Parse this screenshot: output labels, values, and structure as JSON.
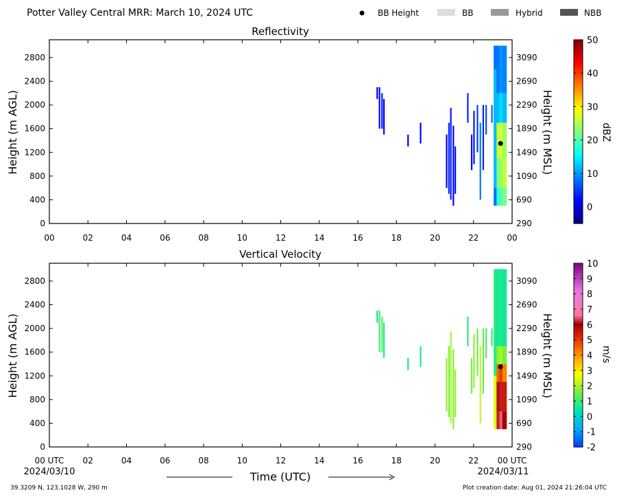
{
  "figure": {
    "title": "Potter Valley Central MRR:  March 10, 2024 UTC",
    "legend": [
      {
        "label": "BB Height",
        "marker": "dot",
        "color": "#000000"
      },
      {
        "label": "BB",
        "marker": "swatch",
        "color": "#dcdcdc"
      },
      {
        "label": "Hybrid",
        "marker": "swatch",
        "color": "#9a9a9a"
      },
      {
        "label": "NBB",
        "marker": "swatch",
        "color": "#555555"
      }
    ],
    "xlabel": "Time (UTC)",
    "x_start_label": "00 UTC",
    "x_start_date": "2024/03/10",
    "x_end_label": "00 UTC",
    "x_end_date": "2024/03/11",
    "location": "39.3209 N, 123.1028 W, 290 m",
    "creation": "Plot creation date: Aug 01, 2024 21:26:04 UTC"
  },
  "chart_data": [
    {
      "type": "heatmap",
      "title": "Reflectivity",
      "ylabel": "Height (m AGL)",
      "y2label": "Height (m MSL)",
      "colorbar_label": "dBZ",
      "xlim": [
        0,
        24
      ],
      "x_ticks": [
        "00",
        "02",
        "04",
        "06",
        "08",
        "10",
        "12",
        "14",
        "16",
        "18",
        "20",
        "22",
        "00"
      ],
      "ylim": [
        0,
        3100
      ],
      "y_ticks": [
        0,
        400,
        800,
        1200,
        1600,
        2000,
        2400,
        2800
      ],
      "y2_ticks": [
        290,
        690,
        1090,
        1490,
        1890,
        2290,
        2690,
        3090
      ],
      "colorbar_range": [
        -5,
        50
      ],
      "colorbar_ticks": [
        0,
        10,
        20,
        30,
        40,
        50
      ],
      "colormap": "jet",
      "bb_height": {
        "time": 23.4,
        "height": 1350
      },
      "echoes": [
        {
          "time": 17.0,
          "bottom": 2100,
          "top": 2300,
          "value": 1
        },
        {
          "time": 17.12,
          "bottom": 1600,
          "top": 2300,
          "value": 2
        },
        {
          "time": 17.25,
          "bottom": 1600,
          "top": 2200,
          "value": 3
        },
        {
          "time": 17.35,
          "bottom": 1500,
          "top": 2100,
          "value": 1
        },
        {
          "time": 18.6,
          "bottom": 1300,
          "top": 1500,
          "value": 1
        },
        {
          "time": 19.25,
          "bottom": 1350,
          "top": 1700,
          "value": 1
        },
        {
          "time": 20.6,
          "bottom": 600,
          "top": 1500,
          "value": 2
        },
        {
          "time": 20.72,
          "bottom": 500,
          "top": 1700,
          "value": 4
        },
        {
          "time": 20.82,
          "bottom": 400,
          "top": 1950,
          "value": 3
        },
        {
          "time": 20.95,
          "bottom": 300,
          "top": 1650,
          "value": 2
        },
        {
          "time": 21.05,
          "bottom": 500,
          "top": 1300,
          "value": 3
        },
        {
          "time": 21.7,
          "bottom": 1700,
          "top": 2200,
          "value": 4
        },
        {
          "time": 21.9,
          "bottom": 900,
          "top": 1500,
          "value": 2
        },
        {
          "time": 22.02,
          "bottom": 1000,
          "top": 1900,
          "value": 3
        },
        {
          "time": 22.2,
          "bottom": 1200,
          "top": 2000,
          "value": 5
        },
        {
          "time": 22.35,
          "bottom": 400,
          "top": 1700,
          "value": 8
        },
        {
          "time": 22.5,
          "bottom": 900,
          "top": 2000,
          "value": 4
        },
        {
          "time": 22.65,
          "bottom": 1500,
          "top": 2000,
          "value": 6
        },
        {
          "time": 22.95,
          "bottom": 1700,
          "top": 2000,
          "value": 7
        }
      ],
      "profiles": [
        {
          "time": 23.15,
          "levels": [
            [
              300,
              3000,
              8
            ],
            [
              600,
              2600,
              12
            ]
          ]
        },
        {
          "time": 23.3,
          "levels": [
            [
              300,
              600,
              18
            ],
            [
              600,
              1100,
              22
            ],
            [
              1100,
              1700,
              26
            ],
            [
              1700,
              2200,
              12
            ],
            [
              2200,
              3000,
              8
            ]
          ]
        },
        {
          "time": 23.45,
          "levels": [
            [
              300,
              600,
              20
            ],
            [
              600,
              1100,
              24
            ],
            [
              1100,
              1700,
              28
            ],
            [
              1700,
              2200,
              14
            ],
            [
              2200,
              3000,
              10
            ]
          ]
        },
        {
          "time": 23.6,
          "levels": [
            [
              300,
              600,
              22
            ],
            [
              600,
              1100,
              26
            ],
            [
              1100,
              1700,
              24
            ],
            [
              1700,
              2200,
              12
            ],
            [
              2200,
              3000,
              9
            ]
          ]
        }
      ]
    },
    {
      "type": "heatmap",
      "title": "Vertical Velocity",
      "ylabel": "Height (m AGL)",
      "y2label": "Height (m MSL)",
      "colorbar_label": "m/s",
      "xlim": [
        0,
        24
      ],
      "x_ticks": [
        "00 UTC",
        "02",
        "04",
        "06",
        "08",
        "10",
        "12",
        "14",
        "16",
        "18",
        "20",
        "22",
        "00 UTC"
      ],
      "ylim": [
        0,
        3100
      ],
      "y_ticks": [
        0,
        400,
        800,
        1200,
        1600,
        2000,
        2400,
        2800
      ],
      "y2_ticks": [
        290,
        690,
        1090,
        1490,
        1890,
        2290,
        2690,
        3090
      ],
      "colorbar_range": [
        -2,
        10
      ],
      "colorbar_ticks": [
        -2,
        -1,
        0,
        1,
        2,
        3,
        4,
        5,
        6,
        7,
        8,
        9,
        10
      ],
      "colormap": "velocity",
      "bb_height": {
        "time": 23.4,
        "height": 1350
      },
      "echoes": [
        {
          "time": 17.0,
          "bottom": 2100,
          "top": 2300,
          "value": 0.5
        },
        {
          "time": 17.12,
          "bottom": 1600,
          "top": 2300,
          "value": 1.0
        },
        {
          "time": 17.25,
          "bottom": 1600,
          "top": 2200,
          "value": 1.2
        },
        {
          "time": 17.35,
          "bottom": 1500,
          "top": 2100,
          "value": 0.8
        },
        {
          "time": 18.6,
          "bottom": 1300,
          "top": 1500,
          "value": 0.6
        },
        {
          "time": 19.25,
          "bottom": 1350,
          "top": 1700,
          "value": 0.7
        },
        {
          "time": 20.6,
          "bottom": 600,
          "top": 1500,
          "value": 1.8
        },
        {
          "time": 20.72,
          "bottom": 500,
          "top": 1700,
          "value": 1.6
        },
        {
          "time": 20.82,
          "bottom": 400,
          "top": 1950,
          "value": 2.0
        },
        {
          "time": 20.95,
          "bottom": 300,
          "top": 1650,
          "value": 1.7
        },
        {
          "time": 21.05,
          "bottom": 500,
          "top": 1300,
          "value": 1.9
        },
        {
          "time": 21.7,
          "bottom": 1700,
          "top": 2200,
          "value": 0.8
        },
        {
          "time": 21.9,
          "bottom": 900,
          "top": 1500,
          "value": 1.6
        },
        {
          "time": 22.02,
          "bottom": 1000,
          "top": 1900,
          "value": 1.8
        },
        {
          "time": 22.2,
          "bottom": 1200,
          "top": 2000,
          "value": 1.5
        },
        {
          "time": 22.35,
          "bottom": 400,
          "top": 1700,
          "value": 2.2
        },
        {
          "time": 22.5,
          "bottom": 900,
          "top": 2000,
          "value": 1.4
        },
        {
          "time": 22.65,
          "bottom": 1500,
          "top": 2000,
          "value": 1.2
        },
        {
          "time": 22.95,
          "bottom": 1700,
          "top": 2000,
          "value": 0.9
        }
      ],
      "profiles": [
        {
          "time": 23.15,
          "levels": [
            [
              300,
              1200,
              2.5
            ],
            [
              1200,
              3000,
              0.8
            ]
          ]
        },
        {
          "time": 23.3,
          "levels": [
            [
              300,
              600,
              6.2
            ],
            [
              600,
              1100,
              5.8
            ],
            [
              1100,
              1400,
              4.5
            ],
            [
              1400,
              1700,
              1.8
            ],
            [
              1700,
              3000,
              0.6
            ]
          ]
        },
        {
          "time": 23.45,
          "levels": [
            [
              300,
              600,
              6.5
            ],
            [
              600,
              1100,
              6.2
            ],
            [
              1100,
              1400,
              5.0
            ],
            [
              1400,
              1700,
              2.0
            ],
            [
              1700,
              3000,
              0.7
            ]
          ]
        },
        {
          "time": 23.6,
          "levels": [
            [
              300,
              600,
              6.0
            ],
            [
              600,
              1100,
              5.5
            ],
            [
              1100,
              1400,
              4.2
            ],
            [
              1400,
              1700,
              1.6
            ],
            [
              1700,
              3000,
              0.6
            ]
          ]
        }
      ]
    }
  ]
}
